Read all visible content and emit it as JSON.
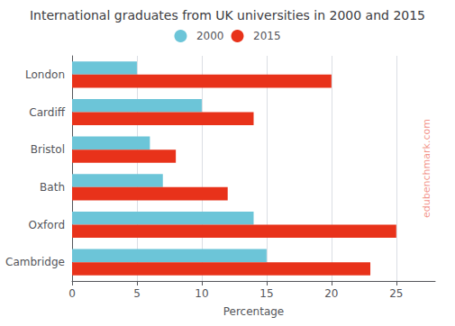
{
  "chart_data": {
    "type": "bar",
    "orientation": "horizontal",
    "title": "International graduates from UK universities in 2000 and 2015",
    "xlabel": "Percentage",
    "categories": [
      "London",
      "Cardiff",
      "Bristol",
      "Bath",
      "Oxford",
      "Cambridge"
    ],
    "series": [
      {
        "name": "2000",
        "color": "#6cc5d8",
        "values": [
          5,
          10,
          6,
          7,
          14,
          15
        ]
      },
      {
        "name": "2015",
        "color": "#e8321a",
        "values": [
          20,
          14,
          8,
          12,
          25,
          23
        ]
      }
    ],
    "xlim": [
      0,
      28
    ],
    "xticks": [
      0,
      5,
      10,
      15,
      20,
      25
    ],
    "grid": true,
    "legend": "top",
    "annotations": [
      {
        "text": "edubenchmark.com",
        "color": "#e8321a"
      }
    ]
  }
}
